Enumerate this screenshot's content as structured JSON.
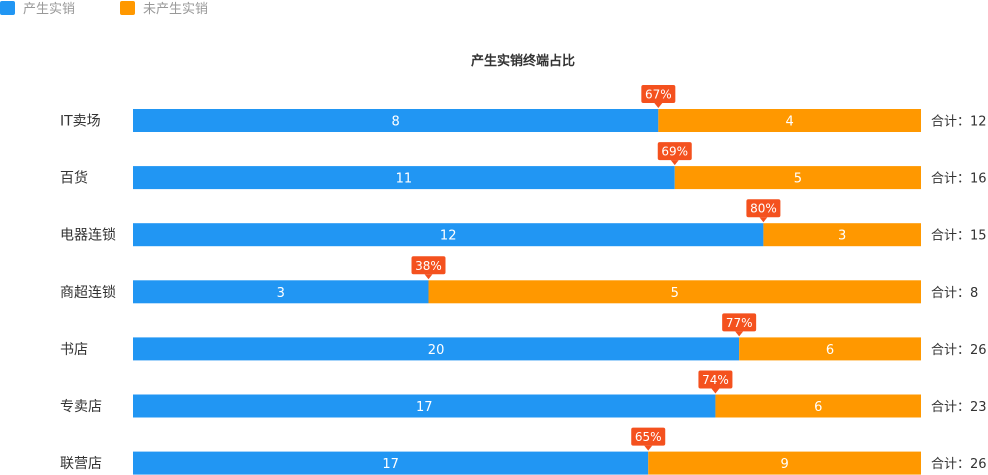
{
  "chart_data": {
    "type": "bar",
    "orientation": "horizontal",
    "stacked": true,
    "normalized_to_100_percent": true,
    "title": "产生实销终端占比",
    "legend": {
      "placement": "top-left",
      "items": [
        {
          "label": "产生实销",
          "color": "#2196F3"
        },
        {
          "label": "未产生实销",
          "color": "#FF9800"
        }
      ]
    },
    "categories": [
      "IT卖场",
      "百货",
      "电器连锁",
      "商超连锁",
      "书店",
      "专卖店",
      "联营店"
    ],
    "series": [
      {
        "name": "产生实销",
        "values": [
          8,
          11,
          12,
          3,
          20,
          17,
          17
        ],
        "color": "#2196F3"
      },
      {
        "name": "未产生实销",
        "values": [
          4,
          5,
          3,
          5,
          6,
          6,
          9
        ],
        "color": "#FF9800"
      }
    ],
    "percent_labels": [
      "67%",
      "69%",
      "80%",
      "38%",
      "77%",
      "74%",
      "65%"
    ],
    "total_prefix": "合计：",
    "totals": [
      12,
      16,
      15,
      8,
      26,
      23,
      26
    ],
    "badge_color": "#F4511E",
    "grid": false
  }
}
